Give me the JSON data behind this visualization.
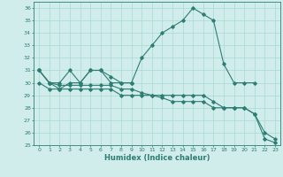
{
  "title": "",
  "xlabel": "Humidex (Indice chaleur)",
  "x": [
    0,
    1,
    2,
    3,
    4,
    5,
    6,
    7,
    8,
    9,
    10,
    11,
    12,
    13,
    14,
    15,
    16,
    17,
    18,
    19,
    20,
    21,
    22,
    23
  ],
  "line1": [
    31,
    30,
    30,
    31,
    30,
    31,
    31,
    30,
    30,
    30,
    32,
    33,
    34,
    34.5,
    35,
    36,
    35.5,
    35,
    31.5,
    30,
    30,
    30,
    null,
    null
  ],
  "line2": [
    31,
    30,
    29.5,
    30,
    30,
    31,
    31,
    30.5,
    30,
    30,
    null,
    null,
    null,
    null,
    null,
    null,
    null,
    null,
    null,
    null,
    null,
    null,
    null,
    null
  ],
  "line3": [
    30,
    29.5,
    29.5,
    29.5,
    29.5,
    29.5,
    29.5,
    29.5,
    29,
    29,
    29,
    29,
    28.8,
    28.5,
    28.5,
    28.5,
    28.5,
    28,
    28,
    28,
    28,
    27.5,
    25.5,
    25.2
  ],
  "line4": [
    31,
    30,
    29.8,
    29.8,
    29.8,
    29.8,
    29.8,
    29.8,
    29.5,
    29.5,
    29.2,
    29,
    29,
    29,
    29,
    29,
    29,
    28.5,
    28,
    28,
    28,
    27.5,
    26,
    25.5
  ],
  "color": "#2e7d73",
  "bg_color": "#d0eceb",
  "grid_color": "#a8d8d4",
  "ylim": [
    25,
    36.5
  ],
  "yticks": [
    25,
    26,
    27,
    28,
    29,
    30,
    31,
    32,
    33,
    34,
    35,
    36
  ],
  "xlim": [
    -0.5,
    23.5
  ],
  "xticks": [
    0,
    1,
    2,
    3,
    4,
    5,
    6,
    7,
    8,
    9,
    10,
    11,
    12,
    13,
    14,
    15,
    16,
    17,
    18,
    19,
    20,
    21,
    22,
    23
  ]
}
